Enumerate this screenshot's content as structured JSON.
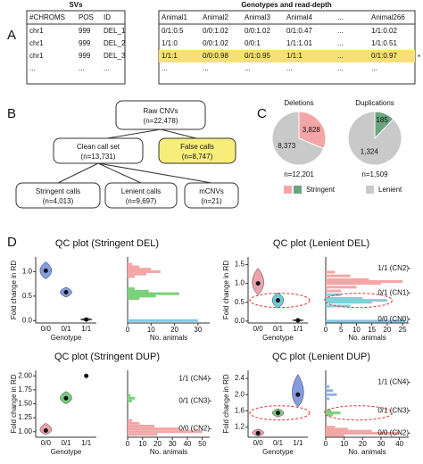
{
  "panel_labels": [
    "A",
    "B",
    "C",
    "D"
  ],
  "table_svs": {
    "title": "SVs",
    "header": [
      "#CHROMS",
      "POS",
      "ID"
    ],
    "rows": [
      [
        "chr1",
        "999",
        "DEL_1"
      ],
      [
        "chr1",
        "999",
        "DEL_2"
      ],
      [
        "chr1",
        "999",
        "DEL_3"
      ],
      [
        "...",
        "...",
        "..."
      ]
    ]
  },
  "table_genotypes": {
    "title": "Genotypes and read-depth",
    "header": [
      "Animal1",
      "Animal2",
      "Animal3",
      "Animal4",
      "...",
      "Animal266"
    ],
    "rows": [
      [
        "0/1:0.5",
        "0/0:1.02",
        "0/0:1.02",
        "0/1:0.47",
        "...",
        "1/1:0.02"
      ],
      [
        "1/1:0",
        "0/0:1.02",
        "0/0:1",
        "1/1:1.01",
        "...",
        "1/1:0.51"
      ],
      [
        "1/1:1",
        "0/0:0.98",
        "0/1:0.95",
        "1/1:1",
        "...",
        "0/1:0.97"
      ],
      [
        "...",
        "...",
        "...",
        "...",
        "...",
        "..."
      ]
    ],
    "highlight_row": 2,
    "highlight_color": "#f7e07a",
    "marker": "*"
  },
  "flow": {
    "nodes": [
      {
        "label": "Raw CNVs",
        "n": "(n=22,478)"
      },
      {
        "label": "Clean call set",
        "n": "(n=13,731)"
      },
      {
        "label": "False calls",
        "n": "(n=8,747)"
      },
      {
        "label": "Stringent calls",
        "n": "(n=4,013)"
      },
      {
        "label": "Lenient calls",
        "n": "(n=9,697)"
      },
      {
        "label": "mCNVs",
        "n": "(n=21)"
      }
    ]
  },
  "pies": {
    "items": [
      {
        "title": "Deletions",
        "n": "n=12,201",
        "values": [
          3828,
          8373
        ],
        "value_labels": [
          "3,828",
          "8,373"
        ],
        "colors": [
          "#f4a6a6",
          "#c9c9c9"
        ]
      },
      {
        "title": "Duplications",
        "n": "n=1,509",
        "values": [
          185,
          1324
        ],
        "value_labels": [
          "185",
          "1,324"
        ],
        "colors": [
          "#6aa57e",
          "#c9c9c9"
        ]
      }
    ],
    "legend": [
      {
        "name": "Stringent",
        "colors": [
          "#f4a6a6",
          "#6aa57e"
        ]
      },
      {
        "name": "Lenient",
        "colors": [
          "#c9c9c9"
        ]
      }
    ]
  },
  "qc_plots": [
    {
      "title": "QC plot (Stringent DEL)",
      "ylabel": "Fold change in RD",
      "xlabel": "Genotype",
      "categories": [
        "0/0",
        "0/1",
        "1/1"
      ],
      "ylim": [
        -0.05,
        1.3
      ],
      "yticks": [
        {
          "value": 0,
          "label": "0.0"
        },
        {
          "value": 0.5,
          "label": "0.5"
        },
        {
          "value": 1,
          "label": "1.0"
        }
      ],
      "violins": [
        {
          "color": "#5b7bd5",
          "median": 1.02,
          "range": [
            0.85,
            1.2
          ]
        },
        {
          "color": "#5b7bd5",
          "median": 0.58,
          "range": [
            0.48,
            0.68
          ]
        },
        {
          "color": "#222222",
          "median": 0.02,
          "range": [
            0,
            0.05
          ]
        }
      ],
      "hist": {
        "xlabel": "No. animals",
        "xlim": [
          0,
          35
        ],
        "xticks": [
          0,
          10,
          20,
          30
        ],
        "series": [
          {
            "color": "#f4a6a6",
            "rd": [
              0.9,
              0.95,
              1.0,
              1.05,
              1.1,
              1.15
            ],
            "counts": [
              3,
              8,
              14,
              10,
              5,
              2
            ]
          },
          {
            "color": "#7bd17b",
            "rd": [
              0.45,
              0.5,
              0.55,
              0.6,
              0.65
            ],
            "counts": [
              5,
              12,
              22,
              9,
              3
            ]
          },
          {
            "color": "#7fc8e0",
            "rd": [
              0
            ],
            "counts": [
              30
            ]
          }
        ]
      },
      "cn_ticks": []
    },
    {
      "title": "QC plot (Lenient DEL)",
      "ylabel": "Fold change in RD",
      "xlabel": "Genotype",
      "categories": [
        "0/0",
        "0/1",
        "1/1"
      ],
      "ylim": [
        -0.05,
        1.7
      ],
      "yticks": [
        {
          "value": 0,
          "label": "0.0"
        },
        {
          "value": 0.5,
          "label": "0.5"
        },
        {
          "value": 1,
          "label": "1.0"
        },
        {
          "value": 1.5,
          "label": "1.5"
        }
      ],
      "violins": [
        {
          "color": "#e8838f",
          "median": 1.0,
          "range": [
            0.7,
            1.4
          ]
        },
        {
          "color": "#45b8c8",
          "median": 0.55,
          "range": [
            0.35,
            0.75
          ]
        },
        {
          "color": "#222222",
          "median": 0.02,
          "range": [
            0,
            0.05
          ]
        }
      ],
      "hist": {
        "xlabel": "No. animals",
        "xlim": [
          0,
          27
        ],
        "xticks": [
          0,
          5,
          10,
          15,
          20,
          25
        ],
        "series": [
          {
            "color": "#f4a6a6",
            "rd": [
              0.8,
              0.9,
              1.0,
              1.05,
              1.1,
              1.2,
              1.3
            ],
            "counts": [
              5,
              10,
              18,
              25,
              14,
              8,
              3
            ]
          },
          {
            "color": "#7fd0d8",
            "rd": [
              0.4,
              0.5,
              0.55,
              0.6,
              0.7
            ],
            "counts": [
              8,
              15,
              20,
              12,
              5
            ]
          },
          {
            "color": "#7fc8e0",
            "rd": [
              0
            ],
            "counts": [
              26
            ]
          }
        ]
      },
      "cn_ticks": [
        {
          "value": 1.4,
          "label": "1/1 (CN2)"
        },
        {
          "value": 0.75,
          "label": "0/1 (CN1)"
        },
        {
          "value": 0.05,
          "label": "0/0 (CN0)"
        }
      ]
    },
    {
      "title": "QC plot (Stringent DUP)",
      "ylabel": "Fold change in RD",
      "xlabel": "Genotype",
      "categories": [
        "0/0",
        "0/1",
        "1/1"
      ],
      "ylim": [
        0.9,
        2.1
      ],
      "yticks": [
        {
          "value": 1,
          "label": "1.00"
        },
        {
          "value": 1.25,
          "label": "1.25"
        },
        {
          "value": 1.5,
          "label": "1.50"
        },
        {
          "value": 1.75,
          "label": "1.75"
        },
        {
          "value": 2,
          "label": "2.00"
        }
      ],
      "violins": [
        {
          "color": "#e8838f",
          "median": 1.02,
          "range": [
            0.95,
            1.15
          ]
        },
        {
          "color": "#4fb85a",
          "median": 1.6,
          "range": [
            1.5,
            1.72
          ]
        },
        {
          "color": "#111111",
          "median": 2.0,
          "range": [
            2.0,
            2.0
          ]
        }
      ],
      "hist": {
        "xlabel": "No. animals",
        "xlim": [
          0,
          55
        ],
        "xticks": [
          0,
          10,
          20,
          30,
          40,
          50
        ],
        "series": [
          {
            "color": "#f4a6a6",
            "rd": [
              0.95,
              1.0,
              1.05,
              1.1,
              1.15,
              1.2
            ],
            "counts": [
              20,
              50,
              35,
              18,
              8,
              3
            ]
          },
          {
            "color": "#7bd17b",
            "rd": [
              1.55,
              1.6,
              1.65
            ],
            "counts": [
              3,
              5,
              2
            ]
          }
        ]
      },
      "cn_ticks": [
        {
          "value": 1.95,
          "label": "1/1 (CN4)"
        },
        {
          "value": 1.55,
          "label": "0/1 (CN3)"
        },
        {
          "value": 1.05,
          "label": "0/0 (CN2)"
        }
      ]
    },
    {
      "title": "QC plot (Lenient DUP)",
      "ylabel": "Fold change in RD",
      "xlabel": "Genotype",
      "categories": [
        "0/0",
        "0/1",
        "1/1"
      ],
      "ylim": [
        0.95,
        2.6
      ],
      "yticks": [
        {
          "value": 1.2,
          "label": "1.2"
        },
        {
          "value": 1.6,
          "label": "1.6"
        },
        {
          "value": 2,
          "label": "2.0"
        },
        {
          "value": 2.4,
          "label": "2.4"
        }
      ],
      "violins": [
        {
          "color": "#e8838f",
          "median": 1.05,
          "range": [
            0.98,
            1.15
          ]
        },
        {
          "color": "#4fb85a",
          "median": 1.55,
          "range": [
            1.45,
            1.65
          ]
        },
        {
          "color": "#5b7bd5",
          "median": 2.0,
          "range": [
            1.7,
            2.5
          ]
        }
      ],
      "hist": {
        "xlabel": "No. animals",
        "xlim": [
          0,
          45
        ],
        "xticks": [
          0,
          10,
          20,
          30,
          40
        ],
        "series": [
          {
            "color": "#f4a6a6",
            "rd": [
              1.0,
              1.05,
              1.1,
              1.15,
              1.2
            ],
            "counts": [
              10,
              40,
              25,
              12,
              5
            ]
          },
          {
            "color": "#7bd17b",
            "rd": [
              1.5,
              1.55,
              1.6
            ],
            "counts": [
              4,
              8,
              3
            ]
          },
          {
            "color": "#8fb0e8",
            "rd": [
              1.9,
              2.0,
              2.1,
              2.2
            ],
            "counts": [
              2,
              6,
              4,
              2
            ]
          }
        ]
      },
      "cn_ticks": [
        {
          "value": 2.3,
          "label": "1/1 (CN4)"
        },
        {
          "value": 1.6,
          "label": "0/1 (CN3)"
        },
        {
          "value": 1.05,
          "label": "0/0 (CN2)"
        }
      ]
    }
  ]
}
